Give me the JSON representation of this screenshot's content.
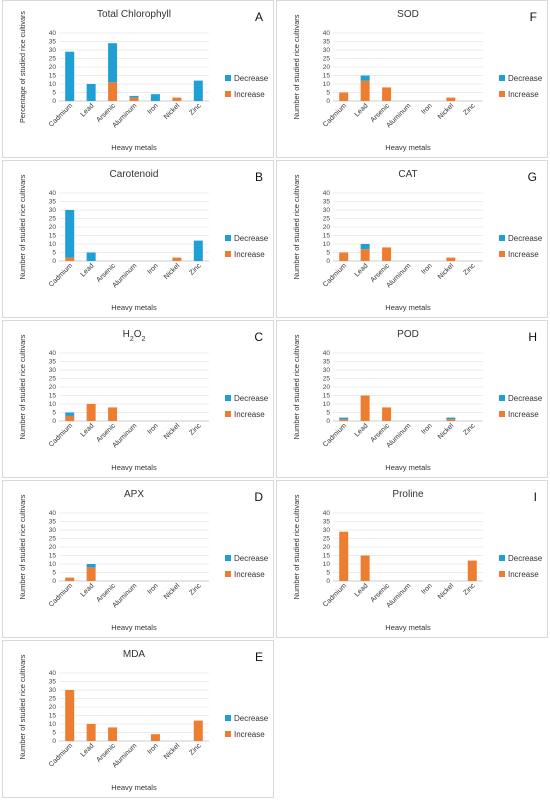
{
  "colors": {
    "decrease": "#1F9FD4",
    "increase": "#ED7D31"
  },
  "chart_data": [
    {
      "id": "A",
      "type": "bar",
      "stacked": true,
      "title": "Total Chlorophyll",
      "letter": "A",
      "xlabel": "Heavy metals",
      "ylabel": "Percentage of studied rice cultivars",
      "ylim": [
        0,
        40
      ],
      "yticks": [
        "0",
        "5",
        "10",
        "15",
        "20",
        "25",
        "30",
        "35",
        "40"
      ],
      "categories": [
        "Cadmium",
        "Lead",
        "Arsenic",
        "Aluminum",
        "Iron",
        "Nickel",
        "Zinc"
      ],
      "legend": [
        "Decrease",
        "Increase"
      ],
      "series": [
        {
          "name": "Increase",
          "values": [
            0,
            0,
            11,
            2,
            0,
            2,
            0
          ]
        },
        {
          "name": "Decrease",
          "values": [
            29,
            10,
            23,
            1,
            4,
            0,
            12
          ]
        }
      ]
    },
    {
      "id": "F",
      "type": "bar",
      "stacked": true,
      "title": "SOD",
      "letter": "F",
      "xlabel": "Heavy metals",
      "ylabel": "Number of studied rice cultivars",
      "ylim": [
        0,
        40
      ],
      "yticks": [
        "0",
        "5",
        "10",
        "15",
        "20",
        "25",
        "30",
        "35",
        "40"
      ],
      "categories": [
        "Cadmium",
        "Lead",
        "Arsenic",
        "Aluminum",
        "Iron",
        "Nickel",
        "Zinc"
      ],
      "legend": [
        "Decrease",
        "Increase"
      ],
      "series": [
        {
          "name": "Increase",
          "values": [
            5,
            12,
            8,
            0,
            0,
            2,
            0
          ]
        },
        {
          "name": "Decrease",
          "values": [
            0,
            3,
            0,
            0,
            0,
            0,
            0
          ]
        }
      ]
    },
    {
      "id": "B",
      "type": "bar",
      "stacked": true,
      "title": "Carotenoid",
      "letter": "B",
      "xlabel": "Heavy metals",
      "ylabel": "Number of studied rice cultivars",
      "ylim": [
        0,
        40
      ],
      "yticks": [
        "0",
        "5",
        "10",
        "15",
        "20",
        "25",
        "30",
        "35",
        "40"
      ],
      "categories": [
        "Cadmium",
        "Lead",
        "Arsenic",
        "Aluminum",
        "Iron",
        "Nickel",
        "Zinc"
      ],
      "legend": [
        "Decrease",
        "Increase"
      ],
      "series": [
        {
          "name": "Increase",
          "values": [
            2,
            0,
            0,
            0,
            0,
            2,
            0
          ]
        },
        {
          "name": "Decrease",
          "values": [
            28,
            5,
            0,
            0,
            0,
            0,
            12
          ]
        }
      ]
    },
    {
      "id": "G",
      "type": "bar",
      "stacked": true,
      "title": "CAT",
      "letter": "G",
      "xlabel": "Heavy metals",
      "ylabel": "Number of studied rice cultivars",
      "ylim": [
        0,
        40
      ],
      "yticks": [
        "0",
        "5",
        "10",
        "15",
        "20",
        "25",
        "30",
        "35",
        "40"
      ],
      "categories": [
        "Cadmium",
        "Lead",
        "Arsenic",
        "Aluminum",
        "Iron",
        "Nickel",
        "Zinc"
      ],
      "legend": [
        "Decrease",
        "Increase"
      ],
      "series": [
        {
          "name": "Increase",
          "values": [
            5,
            7,
            8,
            0,
            0,
            2,
            0
          ]
        },
        {
          "name": "Decrease",
          "values": [
            0,
            3,
            0,
            0,
            0,
            0,
            0
          ]
        }
      ]
    },
    {
      "id": "C",
      "type": "bar",
      "stacked": true,
      "title": "H2O2",
      "title_main": "H",
      "title_parts": [
        "H",
        "2",
        "O",
        "2"
      ],
      "letter": "C",
      "xlabel": "Heavy metals",
      "ylabel": "Number of studied rice cultivars",
      "ylim": [
        0,
        40
      ],
      "yticks": [
        "0",
        "5",
        "10",
        "15",
        "20",
        "25",
        "30",
        "35",
        "40"
      ],
      "categories": [
        "Cadmium",
        "Lead",
        "Arsenic",
        "Aluminum",
        "Iron",
        "Nickel",
        "Zinc"
      ],
      "legend": [
        "Decrease",
        "Increase"
      ],
      "series": [
        {
          "name": "Increase",
          "values": [
            3,
            10,
            8,
            0,
            0,
            0,
            0
          ]
        },
        {
          "name": "Decrease",
          "values": [
            2,
            0,
            0,
            0,
            0,
            0,
            0
          ]
        }
      ]
    },
    {
      "id": "H",
      "type": "bar",
      "stacked": true,
      "title": "POD",
      "letter": "H",
      "xlabel": "Heavy metals",
      "ylabel": "Number of studied rice cultivars",
      "ylim": [
        0,
        40
      ],
      "yticks": [
        "0",
        "5",
        "10",
        "15",
        "20",
        "25",
        "30",
        "35",
        "40"
      ],
      "categories": [
        "Cadmium",
        "Lead",
        "Arsenic",
        "Aluminum",
        "Iron",
        "Nickel",
        "Zinc"
      ],
      "legend": [
        "Decrease",
        "Increase"
      ],
      "series": [
        {
          "name": "Increase",
          "values": [
            1,
            15,
            8,
            0,
            0,
            1,
            0
          ]
        },
        {
          "name": "Decrease",
          "values": [
            1,
            0,
            0,
            0,
            0,
            1,
            0
          ]
        }
      ]
    },
    {
      "id": "D",
      "type": "bar",
      "stacked": true,
      "title": "APX",
      "letter": "D",
      "xlabel": "Heavy metals",
      "ylabel": "Number of studied rice cultivars",
      "ylim": [
        0,
        40
      ],
      "yticks": [
        "0",
        "5",
        "10",
        "15",
        "20",
        "25",
        "30",
        "35",
        "40"
      ],
      "categories": [
        "Cadmium",
        "Lead",
        "Arsenic",
        "Aluminum",
        "Iron",
        "Nickel",
        "Zinc"
      ],
      "legend": [
        "Decrease",
        "Increase"
      ],
      "series": [
        {
          "name": "Increase",
          "values": [
            2,
            8,
            0,
            0,
            0,
            0,
            0
          ]
        },
        {
          "name": "Decrease",
          "values": [
            0,
            2,
            0,
            0,
            0,
            0,
            0
          ]
        }
      ]
    },
    {
      "id": "I",
      "type": "bar",
      "stacked": true,
      "title": "Proline",
      "letter": "I",
      "xlabel": "Heavy metals",
      "ylabel": "Number of studied rice cultivars",
      "ylim": [
        0,
        40
      ],
      "yticks": [
        "0",
        "5",
        "10",
        "15",
        "20",
        "25",
        "30",
        "35",
        "40"
      ],
      "categories": [
        "Cadmium",
        "Lead",
        "Arsenic",
        "Aluminum",
        "Iron",
        "Nickel",
        "Zinc"
      ],
      "legend": [
        "Decrease",
        "Increase"
      ],
      "series": [
        {
          "name": "Increase",
          "values": [
            29,
            15,
            0,
            0,
            0,
            0,
            12
          ]
        },
        {
          "name": "Decrease",
          "values": [
            0,
            0,
            0,
            0,
            0,
            0,
            0
          ]
        }
      ]
    },
    {
      "id": "E",
      "type": "bar",
      "stacked": true,
      "title": "MDA",
      "letter": "E",
      "xlabel": "Heavy metals",
      "ylabel": "Number of studied rice cultivars",
      "ylim": [
        0,
        40
      ],
      "yticks": [
        "0",
        "5",
        "10",
        "15",
        "20",
        "25",
        "30",
        "35",
        "40"
      ],
      "categories": [
        "Cadmium",
        "Lead",
        "Arsenic",
        "Aluminum",
        "Iron",
        "Nickel",
        "Zinc"
      ],
      "legend": [
        "Decrease",
        "Increase"
      ],
      "series": [
        {
          "name": "Increase",
          "values": [
            30,
            10,
            8,
            0,
            4,
            0,
            12
          ]
        },
        {
          "name": "Decrease",
          "values": [
            0,
            0,
            0,
            0,
            0,
            0,
            0
          ]
        }
      ]
    }
  ]
}
